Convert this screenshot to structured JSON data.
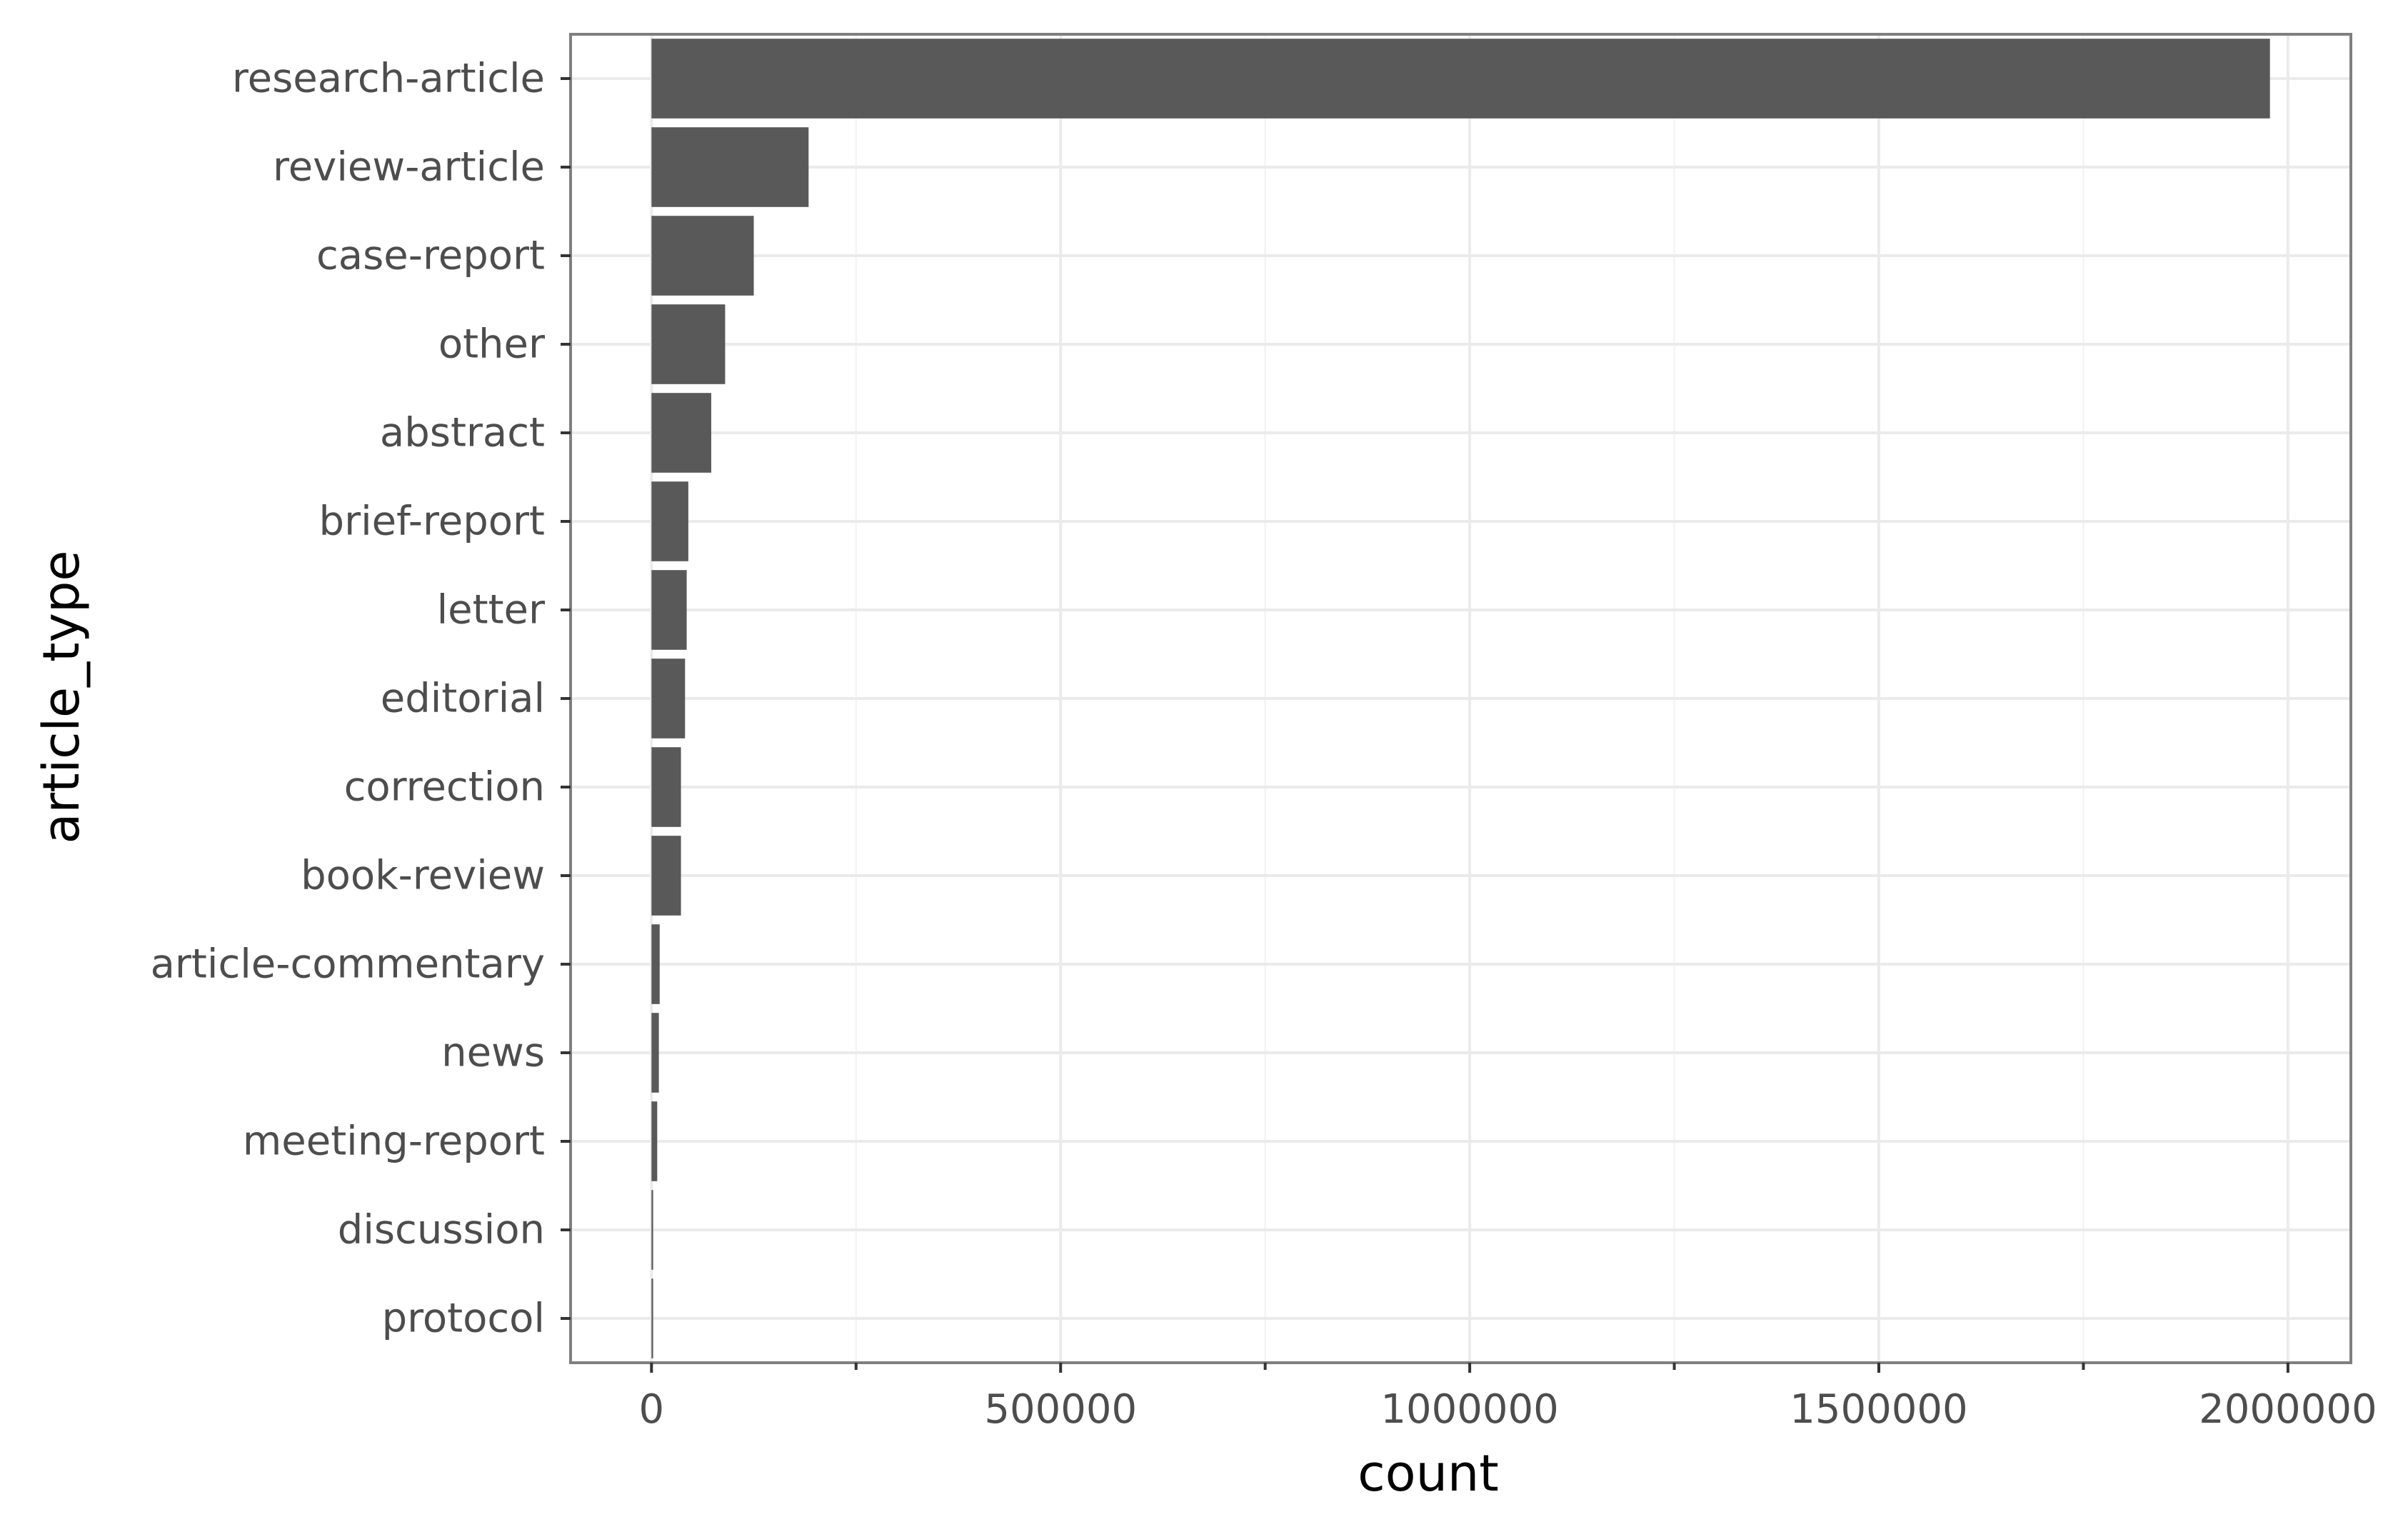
{
  "chart_data": {
    "type": "bar",
    "orientation": "horizontal",
    "title": "",
    "xlabel": "count",
    "ylabel": "article_type",
    "categories": [
      "research-article",
      "review-article",
      "case-report",
      "other",
      "abstract",
      "brief-report",
      "letter",
      "editorial",
      "correction",
      "book-review",
      "article-commentary",
      "news",
      "meeting-report",
      "discussion",
      "protocol"
    ],
    "values": [
      1978000,
      192000,
      125000,
      90000,
      73000,
      45000,
      43000,
      41000,
      36000,
      36000,
      10000,
      9000,
      7000,
      2000,
      2000
    ],
    "xlim": [
      -98900,
      2076900
    ],
    "xticks": [
      0,
      500000,
      1000000,
      1500000,
      2000000
    ],
    "xtick_labels": [
      "0",
      "500000",
      "1000000",
      "1500000",
      "2000000"
    ],
    "grid": true,
    "legend": "none",
    "bar_color": "#595959",
    "grid_color": "#ebebeb",
    "panel_border_color": "#7f7f7f"
  }
}
